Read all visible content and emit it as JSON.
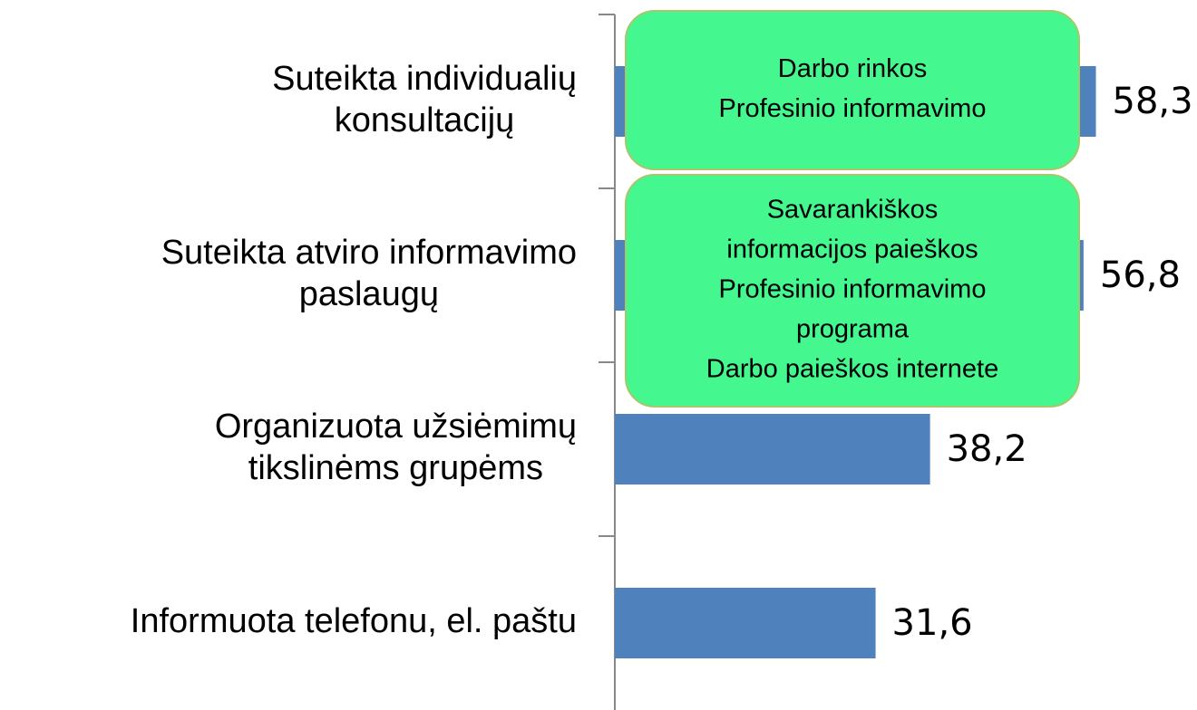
{
  "chart_data": {
    "type": "barh",
    "categories": [
      [
        "Suteikta individualių",
        "konsultacijų"
      ],
      [
        "Suteikta atviro informavimo",
        "paslaugų"
      ],
      [
        "Organizuota užsiėmimų",
        "tikslinėms grupėms"
      ],
      [
        "Informuota telefonu, el. paštu"
      ]
    ],
    "values": [
      58.3,
      56.8,
      38.2,
      31.6
    ],
    "value_labels": [
      "58,3",
      "56,8",
      "38,2",
      "31,6"
    ],
    "color": "#4f81bd",
    "xlim": [
      0,
      60
    ],
    "annotations": [
      {
        "category": 0,
        "lines": [
          "Darbo rinkos",
          "Profesinio informavimo"
        ]
      },
      {
        "category": 1,
        "lines": [
          "Savarankiškos",
          "informacijos paieškos",
          "Profesinio informavimo",
          "programa",
          "Darbo paieškos internete"
        ]
      }
    ]
  }
}
